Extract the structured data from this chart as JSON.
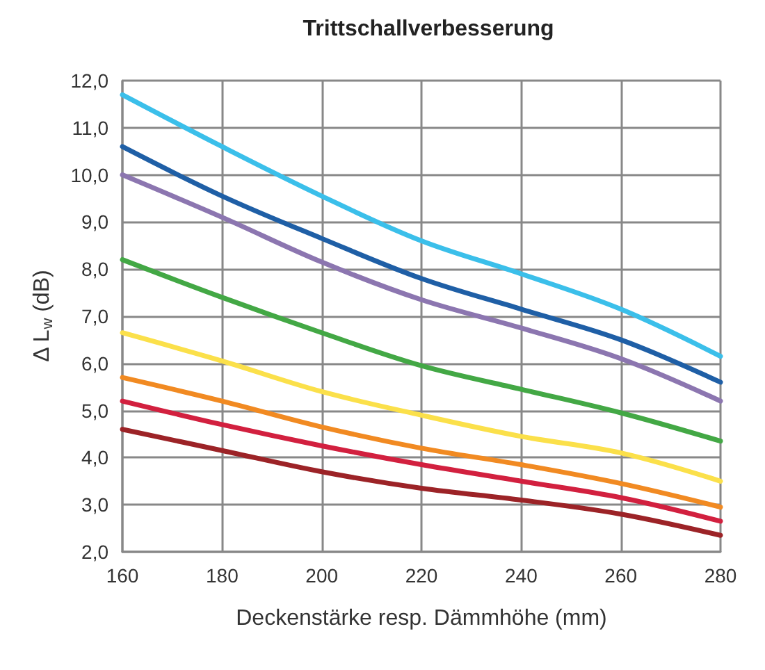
{
  "chart_data": {
    "type": "line",
    "title": "Trittschallverbesserung",
    "xlabel": "Deckenstärke resp. Dämmhöhe (mm)",
    "ylabel": "Δ L$_{w}$ (dB)",
    "x": [
      160,
      180,
      200,
      220,
      240,
      260,
      280
    ],
    "series": [
      {
        "color": "#3bbfea",
        "values": [
          11.7,
          10.6,
          9.55,
          8.6,
          7.9,
          7.15,
          6.15
        ]
      },
      {
        "color": "#1f5fa6",
        "values": [
          10.6,
          9.55,
          8.65,
          7.8,
          7.15,
          6.5,
          5.6
        ]
      },
      {
        "color": "#8c76b0",
        "values": [
          10.0,
          9.1,
          8.15,
          7.35,
          6.75,
          6.1,
          5.2
        ]
      },
      {
        "color": "#43a845",
        "values": [
          8.2,
          7.4,
          6.65,
          5.95,
          5.45,
          4.95,
          4.35
        ]
      },
      {
        "color": "#fbe04a",
        "values": [
          6.65,
          6.05,
          5.4,
          4.9,
          4.45,
          4.1,
          3.5
        ]
      },
      {
        "color": "#f18a22",
        "values": [
          5.7,
          5.2,
          4.65,
          4.2,
          3.85,
          3.45,
          2.95
        ]
      },
      {
        "color": "#d2203f",
        "values": [
          5.2,
          4.7,
          4.25,
          3.85,
          3.5,
          3.15,
          2.65
        ]
      },
      {
        "color": "#9c2327",
        "values": [
          4.6,
          4.15,
          3.7,
          3.35,
          3.1,
          2.8,
          2.35
        ]
      }
    ],
    "xlim": [
      160,
      280
    ],
    "xticks": [
      160,
      180,
      200,
      220,
      240,
      260,
      280
    ],
    "ylim": [
      2,
      12
    ],
    "yticks": [
      {
        "value": 2,
        "label": "2,0"
      },
      {
        "value": 3,
        "label": "3,0"
      },
      {
        "value": 4,
        "label": "4,0"
      },
      {
        "value": 5,
        "label": "5,0"
      },
      {
        "value": 6,
        "label": "6,0"
      },
      {
        "value": 7,
        "label": "7,0"
      },
      {
        "value": 8,
        "label": "8,0"
      },
      {
        "value": 9,
        "label": "9,0"
      },
      {
        "value": 10,
        "label": "10,0"
      },
      {
        "value": 11,
        "label": "11,0"
      },
      {
        "value": 12,
        "label": "12,0"
      }
    ],
    "grid": true,
    "marker": "none",
    "line_style": "solid"
  }
}
